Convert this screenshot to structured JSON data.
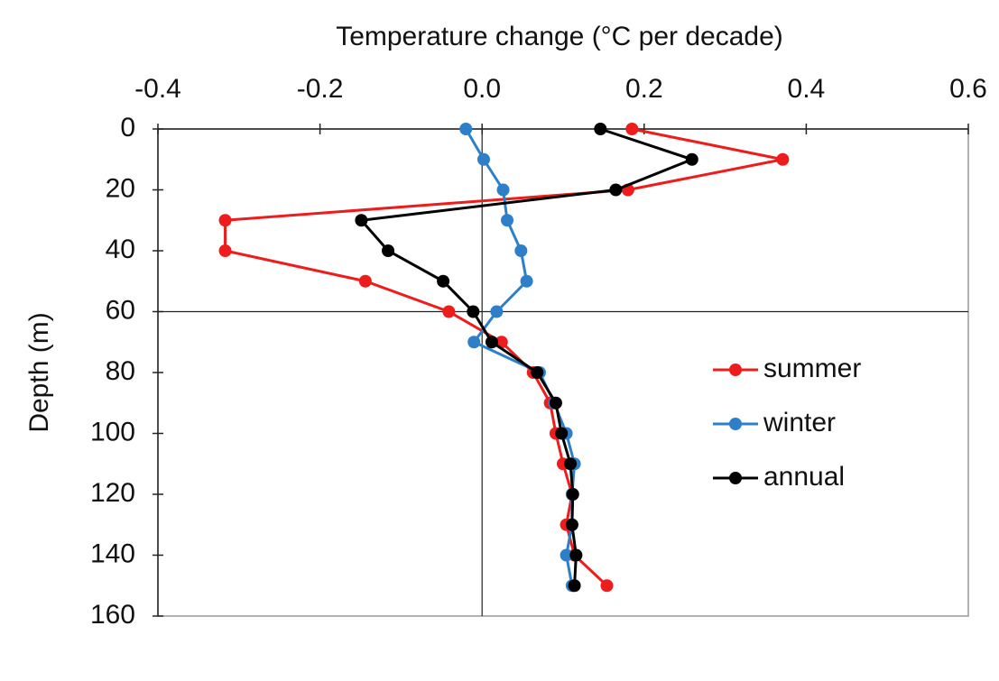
{
  "chart_data": {
    "type": "line",
    "title": "Temperature change (°C per decade)",
    "y_label": "Depth (m)",
    "orientation": "depth-profile",
    "y": [
      0,
      10,
      20,
      30,
      40,
      50,
      60,
      70,
      80,
      90,
      100,
      110,
      120,
      130,
      140,
      150
    ],
    "series": [
      {
        "name": "summer",
        "color": "#ee1c1c",
        "values": [
          0.185,
          0.371,
          0.18,
          -0.317,
          -0.317,
          -0.144,
          -0.041,
          0.024,
          0.063,
          0.084,
          0.091,
          0.1,
          0.111,
          0.104,
          0.114,
          0.154
        ]
      },
      {
        "name": "winter",
        "color": "#2e7fc8",
        "values": [
          -0.02,
          0.002,
          0.026,
          0.031,
          0.048,
          0.055,
          0.018,
          -0.01,
          0.071,
          0.089,
          0.104,
          0.114,
          0.111,
          0.111,
          0.104,
          0.111
        ]
      },
      {
        "name": "annual",
        "color": "#000000",
        "values": [
          0.146,
          0.259,
          0.165,
          -0.149,
          -0.116,
          -0.048,
          -0.011,
          0.012,
          0.068,
          0.091,
          0.098,
          0.109,
          0.112,
          0.111,
          0.116,
          0.114
        ]
      }
    ],
    "xlim": [
      -0.4,
      0.6
    ],
    "xticks": [
      -0.4,
      -0.2,
      {
        "value": 0,
        "label": "0.0"
      },
      0.2,
      0.4,
      0.6
    ],
    "ylim": [
      0,
      160
    ],
    "yticks": [
      0,
      20,
      40,
      60,
      80,
      100,
      120,
      140,
      160
    ],
    "y_inverted": true,
    "reference_line_y": 60,
    "legend": "right",
    "grid": false
  }
}
